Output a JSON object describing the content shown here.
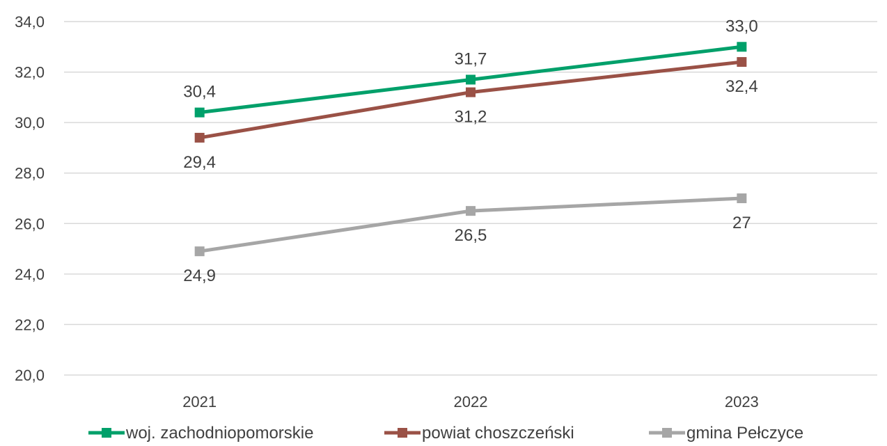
{
  "chart_data": {
    "type": "line",
    "title": "",
    "xlabel": "",
    "ylabel": "",
    "categories": [
      "2021",
      "2022",
      "2023"
    ],
    "ylim": [
      20,
      34
    ],
    "ytick_step": 2,
    "ytick_labels": [
      "20,0",
      "22,0",
      "24,0",
      "26,0",
      "28,0",
      "30,0",
      "32,0",
      "34,0"
    ],
    "grid": true,
    "legend_position": "bottom",
    "series": [
      {
        "name": "woj. zachodniopomorskie",
        "color": "#00A06A",
        "values": [
          30.4,
          31.7,
          33.0
        ],
        "labels": [
          "30,4",
          "31,7",
          "33,0"
        ],
        "label_side": [
          "above",
          "above",
          "above"
        ]
      },
      {
        "name": "powiat choszczeński",
        "color": "#9A5146",
        "values": [
          29.4,
          31.2,
          32.4
        ],
        "labels": [
          "29,4",
          "31,2",
          "32,4"
        ],
        "label_side": [
          "below",
          "below",
          "below"
        ]
      },
      {
        "name": "gmina Pełczyce",
        "color": "#A6A6A6",
        "values": [
          24.9,
          26.5,
          27
        ],
        "labels": [
          "24,9",
          "26,5",
          "27"
        ],
        "label_side": [
          "below",
          "below",
          "below"
        ]
      }
    ]
  }
}
